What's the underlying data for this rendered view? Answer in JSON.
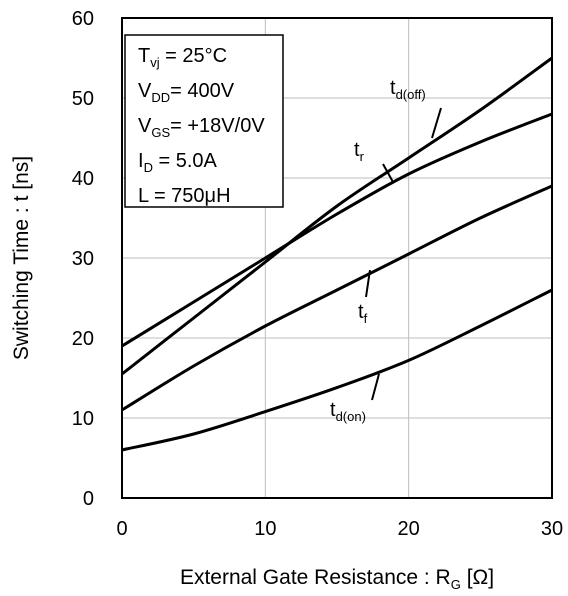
{
  "chart_data": {
    "type": "line",
    "xlabel": "External Gate Resistance : R",
    "xlabel_sub": "G",
    "xlabel_unit": " [Ω]",
    "ylabel": "Switching Time : t [ns]",
    "xlim": [
      0,
      30
    ],
    "ylim": [
      0,
      60
    ],
    "xticks": [
      "0",
      "10",
      "20",
      "30"
    ],
    "yticks": [
      "0",
      "10",
      "20",
      "30",
      "40",
      "50",
      "60"
    ],
    "grid": true,
    "conditions": [
      {
        "main": "T",
        "sub": "vj",
        "rest": " =    25°C"
      },
      {
        "main": "V",
        "sub": "DD",
        "rest": "= 400V"
      },
      {
        "main": "V",
        "sub": "GS",
        "rest": "= +18V/0V"
      },
      {
        "main": "I",
        "sub": "D",
        "rest": " =    5.0A"
      },
      {
        "main": "L",
        "sub": "",
        "rest": " =    750μH"
      }
    ],
    "series": [
      {
        "name": "t",
        "sub": "d(off)",
        "x": [
          0,
          5,
          10,
          15,
          20,
          25,
          30
        ],
        "y": [
          15.5,
          22.5,
          29.5,
          36.5,
          42.5,
          48.5,
          55
        ]
      },
      {
        "name": "t",
        "sub": "r",
        "x": [
          0,
          5,
          10,
          15,
          20,
          25,
          30
        ],
        "y": [
          19,
          24.5,
          30,
          35.5,
          40.5,
          44.5,
          48
        ]
      },
      {
        "name": "t",
        "sub": "f",
        "x": [
          0,
          5,
          10,
          15,
          20,
          25,
          30
        ],
        "y": [
          11,
          16.5,
          21.5,
          26,
          30.5,
          35,
          39
        ]
      },
      {
        "name": "t",
        "sub": "d(on)",
        "x": [
          0,
          5,
          10,
          15,
          20,
          25,
          30
        ],
        "y": [
          6,
          8,
          10.8,
          13.8,
          17.2,
          21.5,
          26
        ]
      }
    ]
  }
}
